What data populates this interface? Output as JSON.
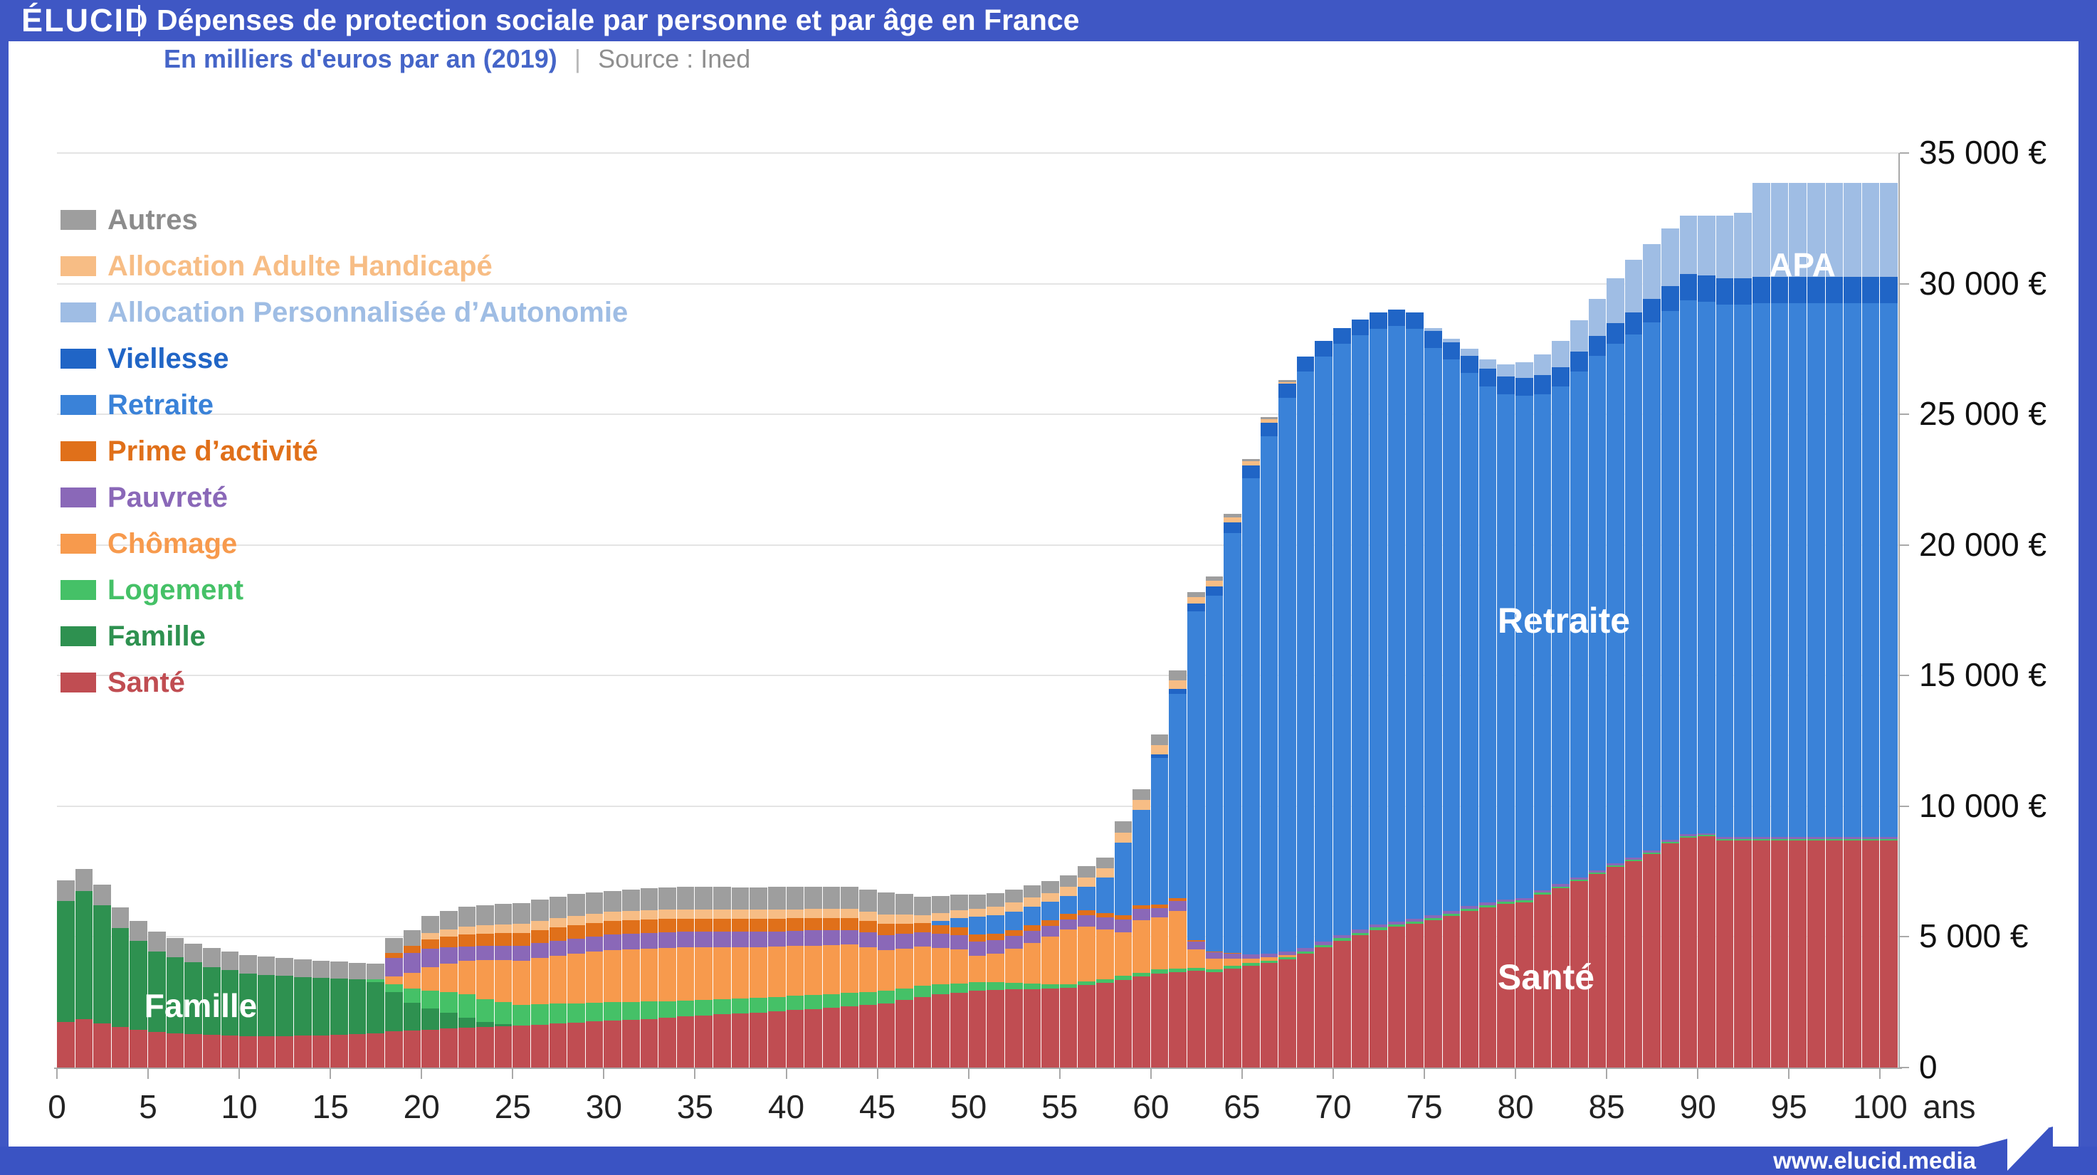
{
  "header": {
    "logo": "ÉLUCID",
    "title": "Dépenses de protection sociale par personne et par âge en France"
  },
  "subtitle": {
    "text": "En milliers d'euros par an (2019)",
    "separator": "|",
    "source": "Source : Ined"
  },
  "footer": {
    "url": "www.elucid.media"
  },
  "colors": {
    "frame_blue": "#3f57c4",
    "gridline": "#e4e4e4",
    "axis": "#a9a9a9",
    "subtitle_blue": "#4565c8",
    "subtitle_gray": "#8f8f8f"
  },
  "chart_data": {
    "type": "bar",
    "stacked": true,
    "title": "Dépenses de protection sociale par personne et par âge en France",
    "subtitle": "En milliers d'euros par an (2019)",
    "source": "Source : Ined",
    "xlabel": "ans",
    "ylabel": "euros par an",
    "x_range": [
      0,
      100
    ],
    "ylim": [
      0,
      35000
    ],
    "grid": true,
    "legend_position": "upper-left",
    "x_ticks": [
      0,
      5,
      10,
      15,
      20,
      25,
      30,
      35,
      40,
      45,
      50,
      55,
      60,
      65,
      70,
      75,
      80,
      85,
      90,
      95,
      100
    ],
    "x_axis_suffix": "ans",
    "y_tick_values": [
      0,
      5000,
      10000,
      15000,
      20000,
      25000,
      30000,
      35000
    ],
    "y_tick_labels": [
      "0",
      "5 000 €",
      "10 000 €",
      "15 000 €",
      "20 000 €",
      "25 000 €",
      "30 000 €",
      "35 000 €"
    ],
    "legend_top_to_bottom": [
      "autres",
      "aah",
      "apa",
      "viellesse",
      "retraite",
      "prime_activite",
      "pauvrete",
      "chomage",
      "logement",
      "famille",
      "sante"
    ],
    "stack_order_bottom_to_top": [
      "sante",
      "famille",
      "logement",
      "chomage",
      "pauvrete",
      "prime_activite",
      "retraite",
      "viellesse",
      "apa",
      "aah",
      "autres"
    ],
    "annotations": [
      {
        "text": "Famille",
        "x": 270,
        "y": 1413,
        "size": 46
      },
      {
        "text": "Retraite",
        "x": 2185,
        "y": 872,
        "size": 50
      },
      {
        "text": "Santé",
        "x": 2160,
        "y": 1373,
        "size": 50
      },
      {
        "text": "APA",
        "x": 2520,
        "y": 372,
        "size": 46
      }
    ],
    "series": {
      "sante": {
        "label": "Santé",
        "color": "#c04d52",
        "values": [
          1750,
          1850,
          1700,
          1550,
          1450,
          1350,
          1310,
          1270,
          1250,
          1225,
          1200,
          1205,
          1210,
          1220,
          1235,
          1250,
          1285,
          1320,
          1400,
          1425,
          1450,
          1485,
          1515,
          1550,
          1575,
          1600,
          1640,
          1680,
          1720,
          1760,
          1800,
          1835,
          1865,
          1900,
          1950,
          2000,
          2035,
          2065,
          2100,
          2150,
          2200,
          2245,
          2285,
          2330,
          2390,
          2450,
          2575,
          2700,
          2800,
          2870,
          2950,
          2975,
          3000,
          3010,
          3020,
          3050,
          3150,
          3250,
          3360,
          3480,
          3600,
          3650,
          3700,
          3650,
          3800,
          3900,
          4000,
          4140,
          4350,
          4600,
          4860,
          5070,
          5270,
          5390,
          5500,
          5630,
          5810,
          6000,
          6140,
          6270,
          6320,
          6630,
          6860,
          7130,
          7400,
          7680,
          7900,
          8170,
          8580,
          8800,
          8850,
          8700,
          8700,
          8700,
          8700,
          8700,
          8700,
          8700,
          8700,
          8700,
          8700
        ]
      },
      "famille": {
        "label": "Famille",
        "color": "#2e9150",
        "values": [
          4620,
          4900,
          4500,
          3800,
          3400,
          3100,
          2900,
          2750,
          2600,
          2500,
          2400,
          2350,
          2300,
          2250,
          2200,
          2150,
          2100,
          1950,
          1500,
          1050,
          800,
          600,
          400,
          200,
          100,
          0,
          0,
          0,
          0,
          0,
          0,
          0,
          0,
          0,
          0,
          0,
          0,
          0,
          0,
          0,
          0,
          0,
          0,
          0,
          0,
          0,
          0,
          0,
          0,
          0,
          0,
          0,
          0,
          0,
          0,
          0,
          0,
          0,
          0,
          0,
          0,
          0,
          0,
          0,
          0,
          0,
          0,
          0,
          0,
          0,
          0,
          0,
          0,
          0,
          0,
          0,
          0,
          0,
          0,
          0,
          0,
          0,
          0,
          0,
          0,
          0,
          0,
          0,
          0,
          0,
          0,
          0,
          0,
          0,
          0,
          0,
          0,
          0,
          0,
          0,
          0
        ]
      },
      "logement": {
        "label": "Logement",
        "color": "#45c167",
        "values": [
          0,
          0,
          0,
          0,
          0,
          0,
          0,
          0,
          0,
          0,
          0,
          0,
          0,
          0,
          0,
          0,
          0,
          100,
          300,
          550,
          700,
          800,
          880,
          860,
          830,
          800,
          780,
          760,
          740,
          720,
          700,
          680,
          660,
          640,
          620,
          600,
          590,
          580,
          570,
          560,
          550,
          540,
          530,
          520,
          510,
          500,
          460,
          420,
          380,
          350,
          320,
          285,
          250,
          215,
          180,
          150,
          145,
          140,
          143,
          147,
          150,
          135,
          120,
          113,
          107,
          100,
          97,
          94,
          91,
          88,
          85,
          84,
          83,
          82,
          81,
          80,
          78,
          76,
          74,
          72,
          70,
          68,
          66,
          64,
          62,
          60,
          59,
          58,
          57,
          56,
          55,
          55,
          55,
          55,
          55,
          55,
          55,
          55,
          55,
          55,
          55
        ]
      },
      "chomage": {
        "label": "Chômage",
        "color": "#f79a4d",
        "values": [
          0,
          0,
          0,
          0,
          0,
          0,
          0,
          0,
          0,
          0,
          0,
          0,
          0,
          0,
          0,
          0,
          0,
          0,
          300,
          600,
          900,
          1100,
          1300,
          1500,
          1600,
          1700,
          1775,
          1850,
          1900,
          1950,
          2000,
          2015,
          2035,
          2050,
          2025,
          2000,
          1980,
          1960,
          1940,
          1920,
          1900,
          1885,
          1865,
          1850,
          1700,
          1550,
          1525,
          1500,
          1400,
          1300,
          1000,
          1100,
          1300,
          1550,
          1800,
          2080,
          2100,
          1900,
          1670,
          2000,
          2000,
          2200,
          700,
          400,
          250,
          180,
          120,
          80,
          0,
          0,
          0,
          0,
          0,
          0,
          0,
          0,
          0,
          0,
          0,
          0,
          0,
          0,
          0,
          0,
          0,
          0,
          0,
          0,
          0,
          0,
          0,
          0,
          0,
          0,
          0,
          0,
          0,
          0,
          0,
          0,
          0
        ]
      },
      "pauvrete": {
        "label": "Pauvreté",
        "color": "#8a68b8",
        "values": [
          0,
          0,
          0,
          0,
          0,
          0,
          0,
          0,
          0,
          0,
          0,
          0,
          0,
          0,
          0,
          0,
          0,
          0,
          700,
          750,
          700,
          625,
          550,
          550,
          550,
          550,
          560,
          570,
          580,
          590,
          600,
          600,
          600,
          600,
          600,
          600,
          595,
          590,
          588,
          584,
          580,
          576,
          572,
          568,
          564,
          560,
          558,
          556,
          554,
          552,
          550,
          515,
          480,
          455,
          425,
          400,
          425,
          450,
          500,
          450,
          360,
          400,
          300,
          250,
          200,
          160,
          150,
          140,
          137,
          133,
          130,
          126,
          122,
          118,
          114,
          110,
          107,
          104,
          101,
          98,
          95,
          93,
          91,
          89,
          87,
          85,
          82,
          79,
          76,
          73,
          70,
          70,
          70,
          70,
          70,
          70,
          70,
          70,
          70,
          70,
          70
        ]
      },
      "prime_activite": {
        "label": "Prime d’activité",
        "color": "#e0701a",
        "values": [
          0,
          0,
          0,
          0,
          0,
          0,
          0,
          0,
          0,
          0,
          0,
          0,
          0,
          0,
          0,
          0,
          0,
          0,
          200,
          275,
          350,
          400,
          450,
          465,
          485,
          500,
          505,
          510,
          512,
          516,
          520,
          516,
          512,
          508,
          504,
          500,
          496,
          492,
          488,
          484,
          480,
          472,
          464,
          456,
          448,
          440,
          395,
          350,
          325,
          295,
          270,
          250,
          230,
          220,
          210,
          200,
          190,
          180,
          160,
          140,
          120,
          100,
          60,
          40,
          30,
          0,
          0,
          0,
          0,
          0,
          0,
          0,
          0,
          0,
          0,
          0,
          0,
          0,
          0,
          0,
          0,
          0,
          0,
          0,
          0,
          0,
          0,
          0,
          0,
          0,
          0,
          0,
          0,
          0,
          0,
          0,
          0,
          0,
          0,
          0,
          0
        ]
      },
      "retraite": {
        "label": "Retraite",
        "color": "#3a82d8",
        "values": [
          0,
          0,
          0,
          0,
          0,
          0,
          0,
          0,
          0,
          0,
          0,
          0,
          0,
          0,
          0,
          0,
          0,
          0,
          0,
          0,
          0,
          0,
          0,
          0,
          0,
          0,
          0,
          0,
          0,
          0,
          0,
          0,
          0,
          0,
          0,
          0,
          0,
          0,
          0,
          0,
          0,
          0,
          0,
          0,
          0,
          0,
          0,
          0,
          150,
          350,
          680,
          700,
          720,
          700,
          700,
          680,
          900,
          1360,
          2780,
          3650,
          5620,
          7810,
          12570,
          13600,
          16070,
          18210,
          19800,
          21170,
          22070,
          22400,
          22630,
          22740,
          22810,
          22780,
          22570,
          21730,
          21100,
          20400,
          19760,
          19320,
          19220,
          18990,
          19050,
          19360,
          19680,
          19880,
          20020,
          20200,
          20240,
          20430,
          20330,
          20380,
          20380,
          20430,
          20430,
          20430,
          20430,
          20430,
          20430,
          20430,
          20430
        ]
      },
      "viellesse": {
        "label": "Viellesse",
        "color": "#2065c6",
        "values": [
          0,
          0,
          0,
          0,
          0,
          0,
          0,
          0,
          0,
          0,
          0,
          0,
          0,
          0,
          0,
          0,
          0,
          0,
          0,
          0,
          0,
          0,
          0,
          0,
          0,
          0,
          0,
          0,
          0,
          0,
          0,
          0,
          0,
          0,
          0,
          0,
          0,
          0,
          0,
          0,
          0,
          0,
          0,
          0,
          0,
          0,
          0,
          0,
          0,
          0,
          0,
          0,
          0,
          0,
          0,
          0,
          0,
          0,
          0,
          0,
          150,
          200,
          300,
          350,
          400,
          500,
          520,
          540,
          560,
          580,
          600,
          610,
          620,
          630,
          640,
          650,
          660,
          670,
          680,
          690,
          700,
          720,
          740,
          760,
          780,
          800,
          850,
          900,
          950,
          1000,
          1000,
          1000,
          1000,
          1000,
          1000,
          1000,
          1000,
          1000,
          1000,
          1000,
          1000
        ]
      },
      "apa": {
        "label": "Allocation Personnalisée d’Autonomie",
        "color": "#9fbde4",
        "values": [
          0,
          0,
          0,
          0,
          0,
          0,
          0,
          0,
          0,
          0,
          0,
          0,
          0,
          0,
          0,
          0,
          0,
          0,
          0,
          0,
          0,
          0,
          0,
          0,
          0,
          0,
          0,
          0,
          0,
          0,
          0,
          0,
          0,
          0,
          0,
          0,
          0,
          0,
          0,
          0,
          0,
          0,
          0,
          0,
          0,
          0,
          0,
          0,
          0,
          0,
          0,
          0,
          0,
          0,
          0,
          0,
          0,
          0,
          0,
          0,
          0,
          0,
          0,
          0,
          0,
          0,
          0,
          0,
          0,
          0,
          0,
          0,
          0,
          0,
          0,
          100,
          150,
          250,
          350,
          450,
          600,
          800,
          1000,
          1200,
          1400,
          1700,
          2000,
          2100,
          2200,
          2250,
          2300,
          2400,
          2500,
          3600,
          3600,
          3600,
          3600,
          3600,
          3600,
          3600,
          3600
        ]
      },
      "aah": {
        "label": "Allocation Adulte Handicapé",
        "color": "#f7bd85",
        "values": [
          0,
          0,
          0,
          0,
          0,
          0,
          0,
          0,
          0,
          0,
          0,
          0,
          0,
          0,
          0,
          0,
          0,
          0,
          0,
          0,
          250,
          275,
          300,
          315,
          330,
          350,
          350,
          350,
          350,
          350,
          350,
          350,
          350,
          350,
          350,
          350,
          350,
          350,
          350,
          355,
          350,
          355,
          355,
          355,
          360,
          360,
          335,
          310,
          310,
          310,
          310,
          325,
          340,
          350,
          350,
          350,
          360,
          350,
          380,
          380,
          350,
          330,
          250,
          220,
          200,
          150,
          120,
          80,
          0,
          0,
          0,
          0,
          0,
          0,
          0,
          0,
          0,
          0,
          0,
          0,
          0,
          0,
          0,
          0,
          0,
          0,
          0,
          0,
          0,
          0,
          0,
          0,
          0,
          0,
          0,
          0,
          0,
          0,
          0,
          0,
          0
        ]
      },
      "autres": {
        "label": "Autres",
        "color": "#9e9e9e",
        "values": [
          800,
          850,
          800,
          780,
          760,
          750,
          735,
          720,
          715,
          705,
          700,
          695,
          685,
          680,
          665,
          650,
          625,
          600,
          550,
          600,
          650,
          700,
          750,
          780,
          790,
          800,
          810,
          820,
          850,
          825,
          800,
          825,
          850,
          855,
          865,
          870,
          865,
          865,
          860,
          855,
          850,
          845,
          840,
          835,
          835,
          830,
          800,
          700,
          650,
          600,
          550,
          520,
          500,
          480,
          460,
          450,
          430,
          400,
          420,
          400,
          400,
          380,
          200,
          180,
          150,
          100,
          80,
          60,
          0,
          0,
          0,
          0,
          0,
          0,
          0,
          0,
          0,
          0,
          0,
          0,
          0,
          0,
          0,
          0,
          0,
          0,
          0,
          0,
          0,
          0,
          0,
          0,
          0,
          0,
          0,
          0,
          0,
          0,
          0,
          0,
          0
        ]
      }
    }
  }
}
